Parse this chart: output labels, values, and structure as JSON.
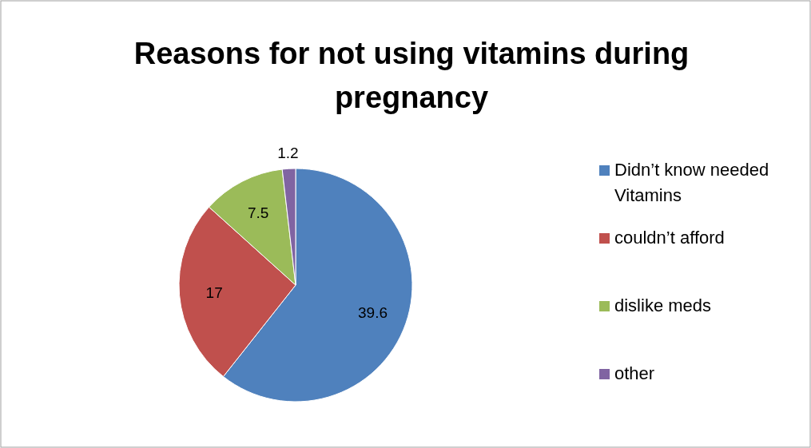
{
  "chart_data": {
    "type": "pie",
    "title": "Reasons for not using vitamins during pregnancy",
    "categories": [
      "Didn’t know needed Vitamins",
      "couldn’t afford",
      "dislike meds",
      "other"
    ],
    "values": [
      39.6,
      17,
      7.5,
      1.2
    ],
    "colors": [
      "#4f81bd",
      "#c0504d",
      "#9bbb59",
      "#8064a2"
    ],
    "data_labels": true,
    "legend": "right"
  }
}
